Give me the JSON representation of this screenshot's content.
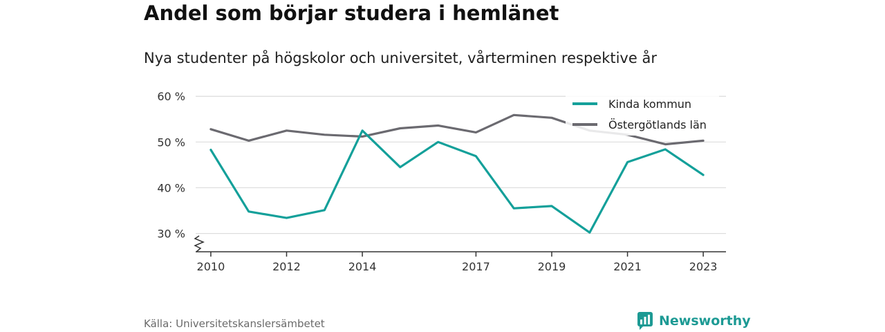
{
  "title": "Andel som börjar studera i hemlänet",
  "subtitle": "Nya studenter på högskolor och universitet, vårterminen respektive år",
  "source": "Källa: Universitetskanslersämbetet",
  "brand": "Newsworthy",
  "colors": {
    "kinda": "#14a09a",
    "ostergotland": "#6b6a70",
    "grid": "#dcdcdc",
    "axis": "#333333",
    "brand": "#1d9a94"
  },
  "chart_data": {
    "type": "line",
    "title": "Andel som börjar studera i hemlänet",
    "subtitle": "Nya studenter på högskolor och universitet, vårterminen respektive år",
    "x": [
      2010,
      2011,
      2012,
      2013,
      2014,
      2015,
      2016,
      2017,
      2018,
      2019,
      2020,
      2021,
      2022,
      2023
    ],
    "x_ticks": [
      2010,
      2012,
      2014,
      2017,
      2019,
      2021,
      2023
    ],
    "y_ticks": [
      30,
      40,
      50,
      60
    ],
    "y_tick_labels": [
      "30 %",
      "40 %",
      "50 %",
      "60 %"
    ],
    "ylim": [
      26,
      62
    ],
    "xlim": [
      2009.6,
      2023.6
    ],
    "y_axis_break": true,
    "grid": true,
    "legend_position": "top-right",
    "series": [
      {
        "name": "Kinda kommun",
        "color": "#14a09a",
        "values": [
          48.3,
          34.8,
          33.4,
          35.1,
          52.5,
          44.5,
          50.0,
          46.9,
          35.5,
          36.0,
          30.2,
          45.6,
          48.4,
          42.8
        ]
      },
      {
        "name": "Östergötlands län",
        "color": "#6b6a70",
        "values": [
          52.8,
          50.3,
          52.5,
          51.6,
          51.2,
          53.0,
          53.6,
          52.1,
          55.9,
          55.3,
          52.5,
          51.6,
          49.5,
          50.3
        ]
      }
    ]
  }
}
